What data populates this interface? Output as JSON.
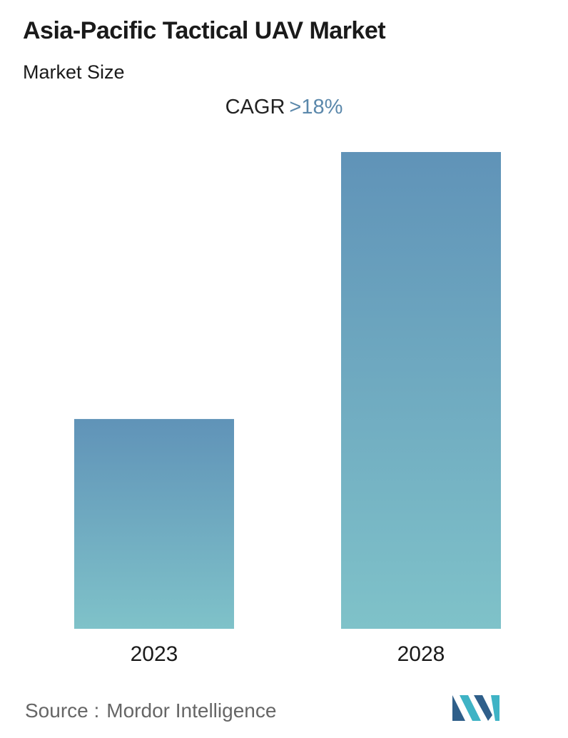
{
  "header": {
    "title": "Asia-Pacific Tactical UAV Market",
    "subtitle": "Market Size"
  },
  "cagr": {
    "label": "CAGR",
    "value": ">18%"
  },
  "chart_data": {
    "type": "bar",
    "categories": [
      "2023",
      "2028"
    ],
    "values": [
      44,
      100
    ],
    "title": "Asia-Pacific Tactical UAV Market",
    "subtitle": "Market Size",
    "ylim": [
      0,
      100
    ],
    "grid": false,
    "legend": "none",
    "bar_gradient": {
      "top": "#6093b8",
      "bottom": "#7fc2c9"
    }
  },
  "footer": {
    "source_prefix": "Source :",
    "source_name": "Mordor Intelligence",
    "logo_icon": "mordor-intelligence-logo-icon",
    "logo_colors": [
      "#2f5f8a",
      "#3fb3c5"
    ]
  }
}
